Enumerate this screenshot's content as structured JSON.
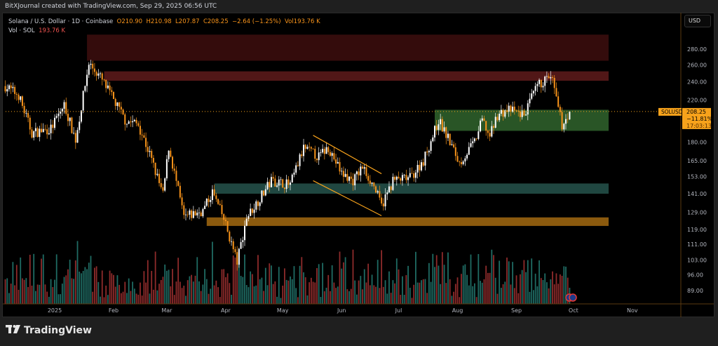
{
  "credit": "BitXJournal created with TradingView.com, Sep 29, 2025 06:56 UTC",
  "legend": {
    "symbol": "Solana / U.S. Dollar · 1D · Coinbase",
    "open": "O210.90",
    "high": "H210.98",
    "low": "L207.87",
    "close": "C208.25",
    "change": "−2.64 (−1.25%)",
    "vol": "Vol193.76 K",
    "vol_label": "Vol · SOL",
    "vol_value": "193.76 K"
  },
  "currency": "USD",
  "price_tag": {
    "symbol": "SOLUSD",
    "price": "208.25",
    "change_pct": "−11.81%",
    "countdown": "17:03:13"
  },
  "footer": {
    "brand": "TradingView"
  },
  "colors": {
    "up": "#ffffff",
    "down": "#f7931a",
    "vol_up": "#1f6b63",
    "vol_down": "#8e2b2b",
    "accent": "#f7a21b"
  },
  "chart_data": {
    "type": "candlestick",
    "title": "Solana / U.S. Dollar · 1D · Coinbase",
    "y_scale": "log",
    "y_ticks": [
      280,
      260,
      240,
      220,
      180,
      165,
      153,
      141,
      129,
      119,
      111,
      103,
      96,
      89
    ],
    "y_tick_labels": [
      "280.00",
      "260.00",
      "240.00",
      "220.00",
      "180.00",
      "165.00",
      "153.00",
      "141.00",
      "129.00",
      "119.00",
      "111.00",
      "103.00",
      "96.00",
      "89.00"
    ],
    "x_ticks": [
      {
        "label": "2025",
        "date": "2025-01-01"
      },
      {
        "label": "Feb",
        "date": "2025-02-01"
      },
      {
        "label": "Mar",
        "date": "2025-03-01"
      },
      {
        "label": "Apr",
        "date": "2025-04-01"
      },
      {
        "label": "May",
        "date": "2025-05-01"
      },
      {
        "label": "Jun",
        "date": "2025-06-01"
      },
      {
        "label": "Jul",
        "date": "2025-07-01"
      },
      {
        "label": "Aug",
        "date": "2025-08-01"
      },
      {
        "label": "Sep",
        "date": "2025-09-01"
      },
      {
        "label": "Oct",
        "date": "2025-10-01"
      },
      {
        "label": "Nov",
        "date": "2025-11-01"
      }
    ],
    "last_price": 208.25,
    "key_closes": [
      [
        "2024-12-06",
        235
      ],
      [
        "2024-12-13",
        225
      ],
      [
        "2024-12-20",
        188
      ],
      [
        "2024-12-30",
        192
      ],
      [
        "2025-01-06",
        215
      ],
      [
        "2025-01-12",
        182
      ],
      [
        "2025-01-19",
        262
      ],
      [
        "2025-01-25",
        245
      ],
      [
        "2025-02-01",
        220
      ],
      [
        "2025-02-07",
        200
      ],
      [
        "2025-02-14",
        196
      ],
      [
        "2025-02-20",
        170
      ],
      [
        "2025-02-27",
        140
      ],
      [
        "2025-03-02",
        176
      ],
      [
        "2025-03-10",
        126
      ],
      [
        "2025-03-20",
        130
      ],
      [
        "2025-03-25",
        142
      ],
      [
        "2025-03-31",
        125
      ],
      [
        "2025-04-07",
        102
      ],
      [
        "2025-04-12",
        126
      ],
      [
        "2025-04-20",
        140
      ],
      [
        "2025-04-25",
        150
      ],
      [
        "2025-05-05",
        147
      ],
      [
        "2025-05-12",
        175
      ],
      [
        "2025-05-20",
        168
      ],
      [
        "2025-05-25",
        176
      ],
      [
        "2025-06-01",
        155
      ],
      [
        "2025-06-07",
        150
      ],
      [
        "2025-06-12",
        160
      ],
      [
        "2025-06-18",
        146
      ],
      [
        "2025-06-22",
        133
      ],
      [
        "2025-06-28",
        150
      ],
      [
        "2025-07-07",
        152
      ],
      [
        "2025-07-14",
        165
      ],
      [
        "2025-07-20",
        190
      ],
      [
        "2025-07-22",
        200
      ],
      [
        "2025-07-28",
        180
      ],
      [
        "2025-08-02",
        163
      ],
      [
        "2025-08-10",
        180
      ],
      [
        "2025-08-14",
        200
      ],
      [
        "2025-08-18",
        185
      ],
      [
        "2025-08-22",
        205
      ],
      [
        "2025-08-28",
        210
      ],
      [
        "2025-09-05",
        205
      ],
      [
        "2025-09-12",
        235
      ],
      [
        "2025-09-18",
        245
      ],
      [
        "2025-09-20",
        240
      ],
      [
        "2025-09-22",
        220
      ],
      [
        "2025-09-25",
        195
      ],
      [
        "2025-09-29",
        208.25
      ]
    ],
    "zones": [
      {
        "name": "resistance-top",
        "low": 265,
        "high": 300,
        "from": "2025-01-18",
        "color": "#3a0d0d"
      },
      {
        "name": "resistance",
        "low": 241,
        "high": 252,
        "from": "2025-01-27",
        "color": "#5a1a1a"
      },
      {
        "name": "support-green",
        "low": 190,
        "high": 210,
        "from": "2025-07-20",
        "color": "#2e5e2a"
      },
      {
        "name": "support-teal",
        "low": 141,
        "high": 148,
        "from": "2025-03-26",
        "color": "#244f48"
      },
      {
        "name": "support-orange",
        "low": 121,
        "high": 126,
        "from": "2025-03-22",
        "color": "#9a6410"
      }
    ],
    "channel": {
      "from": "2025-05-17",
      "to": "2025-06-22",
      "top": [
        186,
        155
      ],
      "bottom": [
        150,
        127
      ]
    }
  }
}
